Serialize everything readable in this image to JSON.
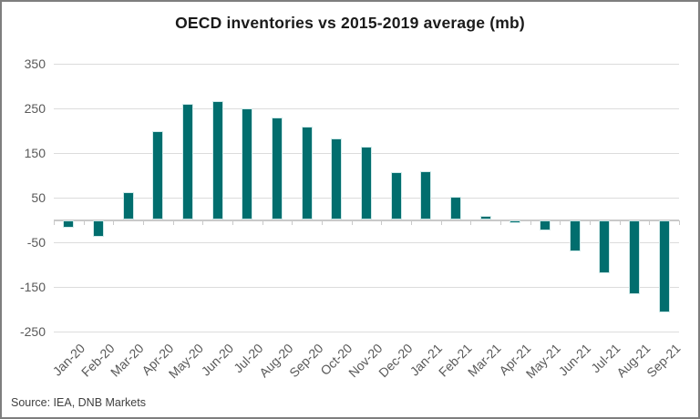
{
  "source_note": "Source: IEA, DNB Markets",
  "colors": {
    "bar": "#016e6e",
    "bar_edge": "#cfe9e9",
    "gridline": "#dcdcdc",
    "axis_line": "#c9c9c9",
    "tick_label": "#595959",
    "title_text": "#1a1a1a",
    "source_text": "#3f3f3f",
    "chart_border": "#7e7e7e"
  },
  "chart_data": {
    "type": "bar",
    "title": "OECD inventories vs 2015-2019 average (mb)",
    "categories": [
      "Jan-20",
      "Feb-20",
      "Mar-20",
      "Apr-20",
      "May-20",
      "Jun-20",
      "Jul-20",
      "Aug-20",
      "Sep-20",
      "Oct-20",
      "Nov-20",
      "Dec-20",
      "Jan-21",
      "Feb-21",
      "Mar-21",
      "Apr-21",
      "May-21",
      "Jun-21",
      "Jul-21",
      "Aug-21",
      "Sep-21"
    ],
    "values": [
      -18,
      -38,
      63,
      198,
      260,
      266,
      251,
      229,
      209,
      182,
      165,
      108,
      110,
      53,
      10,
      -8,
      -23,
      -70,
      -120,
      -166,
      -208
    ],
    "xlabel": "",
    "ylabel": "",
    "ylim": [
      -250,
      350
    ],
    "yticks": [
      350,
      250,
      150,
      50,
      -50,
      -150,
      -250
    ],
    "grid": true,
    "legend_position": "none",
    "bar_color": "#016e6e",
    "source": "Source: IEA, DNB Markets"
  }
}
